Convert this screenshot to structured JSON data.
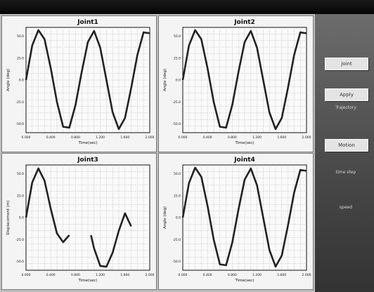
{
  "colors": {
    "trace": "#222222",
    "grid": "#9a9a9a",
    "plot_bg": "#fafafa",
    "panel_bg": "#f4f4f4",
    "sidebar_bg": "#555555"
  },
  "sidebar": {
    "buttons": [
      {
        "label": "Joint"
      },
      {
        "label": "Apply"
      },
      {
        "label": "Motion"
      }
    ],
    "texts": [
      "Trajectory",
      "time step",
      "speed"
    ]
  },
  "chart_data": [
    {
      "type": "line",
      "title": "Joint1",
      "xlabel": "Time(sec)",
      "ylabel": "Angle (deg)",
      "xlim": [
        0,
        2
      ],
      "ylim": [
        -60,
        60
      ],
      "xticks": [
        "0.000",
        "0.400",
        "0.800",
        "1.200",
        "1.600",
        "2.000"
      ],
      "yticks": [
        "50.0",
        "25.0",
        "0.0",
        "-25.0",
        "-50.0"
      ],
      "grid": true,
      "series": [
        {
          "x": [
            0,
            0.1,
            0.2,
            0.3,
            0.4,
            0.5,
            0.6,
            0.7,
            0.8,
            0.9,
            1.0,
            1.1,
            1.2,
            1.3,
            1.4,
            1.5,
            1.6,
            1.7,
            1.8,
            1.9,
            2.0
          ],
          "y": [
            0,
            39.4,
            56.9,
            46.4,
            13.5,
            -25,
            -53.3,
            -54.3,
            -28.5,
            9.1,
            43.3,
            55.9,
            36.8,
            0,
            -36.8,
            -55.9,
            -43.3,
            -9.1,
            28.5,
            54.3,
            53.3
          ]
        }
      ]
    },
    {
      "type": "line",
      "title": "Joint2",
      "xlabel": "Time(sec)",
      "ylabel": "Angle (deg)",
      "xlim": [
        0,
        2
      ],
      "ylim": [
        -60,
        60
      ],
      "xticks": [
        "0.000",
        "0.400",
        "0.800",
        "1.200",
        "1.600",
        "2.000"
      ],
      "yticks": [
        "50.0",
        "25.0",
        "0.0",
        "-25.0",
        "-50.0"
      ],
      "grid": true,
      "series": [
        {
          "x": [
            0,
            0.1,
            0.2,
            0.3,
            0.4,
            0.5,
            0.6,
            0.7,
            0.8,
            0.9,
            1.0,
            1.1,
            1.2,
            1.3,
            1.4,
            1.5,
            1.6,
            1.7,
            1.8,
            1.9,
            2.0
          ],
          "y": [
            0,
            39.4,
            56.9,
            46.4,
            13.5,
            -25,
            -53.3,
            -54.3,
            -28.5,
            9.1,
            43.3,
            55.9,
            36.8,
            0,
            -36.8,
            -55.9,
            -43.3,
            -9.1,
            28.5,
            54.3,
            53.3
          ]
        }
      ]
    },
    {
      "type": "line",
      "title": "Joint3",
      "xlabel": "Time(sec)",
      "ylabel": "Displacement (m)",
      "xlim": [
        0,
        2
      ],
      "ylim": [
        -60,
        60
      ],
      "xticks": [
        "0.000",
        "0.400",
        "0.800",
        "1.200",
        "1.600",
        "2.000"
      ],
      "yticks": [
        "50.0",
        "25.0",
        "0.0",
        "-25.0",
        "-50.0"
      ],
      "grid": true,
      "series": [
        {
          "x": [
            0,
            0.1,
            0.2,
            0.3,
            0.4,
            0.5,
            0.6,
            0.7
          ],
          "y": [
            0,
            40,
            56,
            42,
            10,
            -18,
            -28,
            -20
          ]
        },
        {
          "x": [
            1.05,
            1.1,
            1.2,
            1.3,
            1.4,
            1.5,
            1.6,
            1.7
          ],
          "y": [
            -20,
            -35,
            -55,
            -56,
            -40,
            -15,
            5,
            -10
          ]
        }
      ]
    },
    {
      "type": "line",
      "title": "Joint4",
      "xlabel": "Time(sec)",
      "ylabel": "Angle (deg)",
      "xlim": [
        0,
        2
      ],
      "ylim": [
        -60,
        60
      ],
      "xticks": [
        "0.000",
        "0.400",
        "0.800",
        "1.200",
        "1.600",
        "2.000"
      ],
      "yticks": [
        "50.0",
        "25.0",
        "0.0",
        "-25.0",
        "-50.0"
      ],
      "grid": true,
      "series": [
        {
          "x": [
            0,
            0.1,
            0.2,
            0.3,
            0.4,
            0.5,
            0.6,
            0.7,
            0.8,
            0.9,
            1.0,
            1.1,
            1.2,
            1.3,
            1.4,
            1.5,
            1.6,
            1.7,
            1.8,
            1.9,
            2.0
          ],
          "y": [
            0,
            39.4,
            56.9,
            46.4,
            13.5,
            -25,
            -53.3,
            -54.3,
            -28.5,
            9.1,
            43.3,
            55.9,
            36.8,
            0,
            -36.8,
            -55.9,
            -43.3,
            -9.1,
            28.5,
            54.3,
            53.3
          ]
        }
      ]
    }
  ]
}
